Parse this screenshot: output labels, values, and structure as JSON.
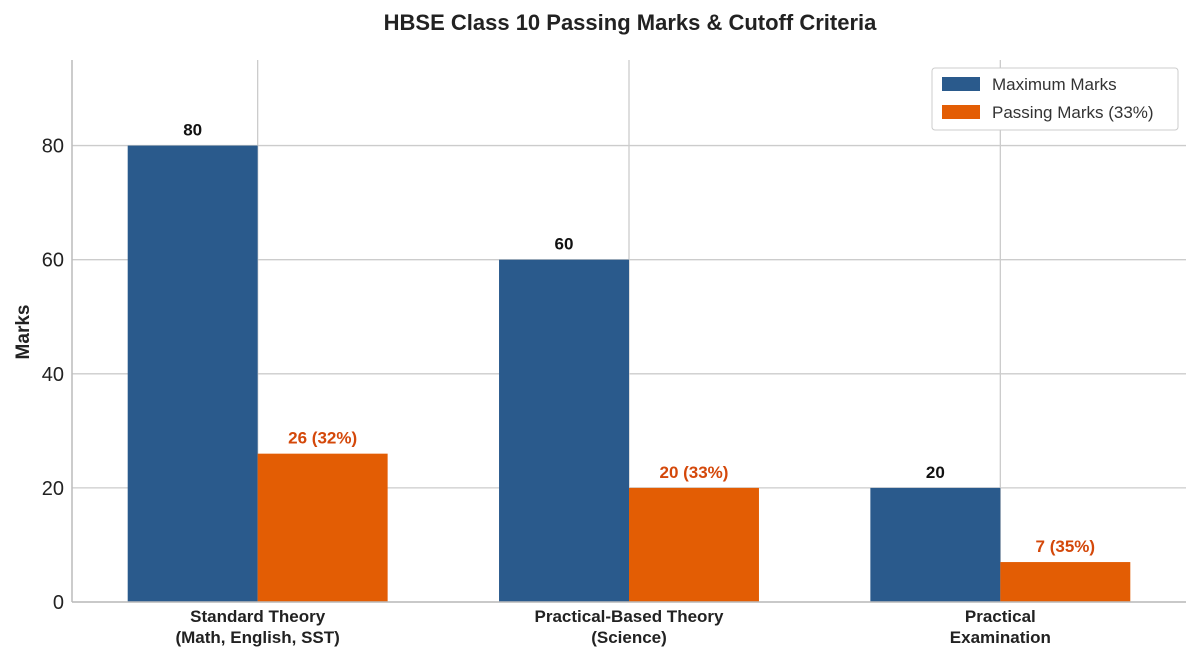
{
  "chart_data": {
    "type": "bar",
    "title": "HBSE Class 10 Passing Marks & Cutoff Criteria",
    "xlabel": "",
    "ylabel": "Marks",
    "ylim": [
      0,
      95
    ],
    "yticks": [
      0,
      20,
      40,
      60,
      80
    ],
    "grid": true,
    "legend_position": "top-right",
    "categories": [
      [
        "Standard Theory",
        "(Math, English, SST)"
      ],
      [
        "Practical-Based Theory",
        "(Science)"
      ],
      [
        "Practical",
        "Examination"
      ]
    ],
    "series": [
      {
        "name": "Maximum Marks",
        "color": "#2a5a8c",
        "label_color": "#111111",
        "values": [
          80,
          60,
          20
        ],
        "labels": [
          "80",
          "60",
          "20"
        ]
      },
      {
        "name": "Passing Marks (33%)",
        "color": "#e35d04",
        "label_color": "#d4480a",
        "values": [
          26,
          20,
          7
        ],
        "labels": [
          "26 (32%)",
          "20 (33%)",
          "7 (35%)"
        ]
      }
    ]
  }
}
